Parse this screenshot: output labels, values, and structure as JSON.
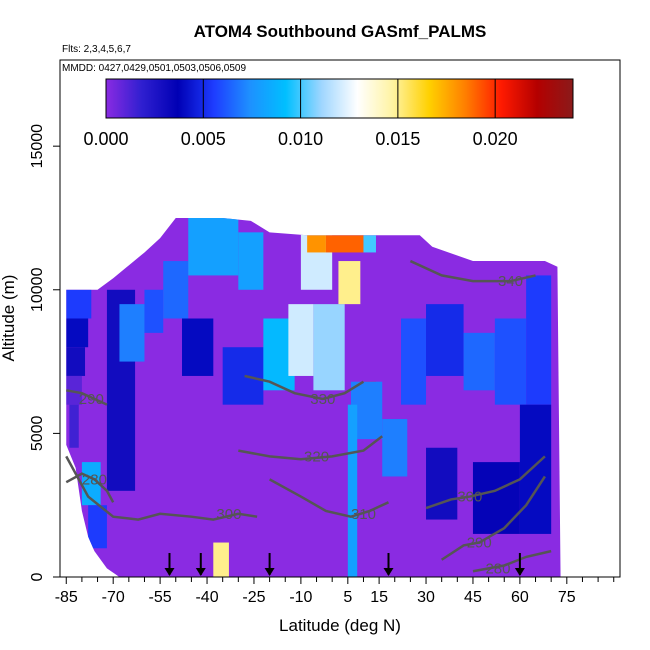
{
  "chart_data": {
    "type": "heatmap",
    "title": "ATOM4 Southbound GASmf_PALMS",
    "flights_note": "Flts: 2,3,4,5,6,7",
    "dates_note": "MMDD: 0427,0429,0501,0503,0506,0509",
    "xlabel": "Latitude (deg N)",
    "ylabel": "Altitude (m)",
    "xlim": [
      -87,
      92
    ],
    "ylim": [
      0,
      18000
    ],
    "x_tick_labels": [
      "-85",
      "-70",
      "-55",
      "-40",
      "-25",
      "-10",
      "5",
      "15",
      "30",
      "45",
      "60",
      "75"
    ],
    "x_tick_values": [
      -85,
      -70,
      -55,
      -40,
      -25,
      -10,
      5,
      15,
      30,
      45,
      60,
      75
    ],
    "y_tick_labels": [
      "0",
      "5000",
      "10000",
      "15000"
    ],
    "y_tick_values": [
      0,
      5000,
      10000,
      15000
    ],
    "colorbar": {
      "min": 0.0,
      "max": 0.024,
      "tick_values": [
        0.0,
        0.005,
        0.01,
        0.015,
        0.02
      ],
      "tick_labels": [
        "0.000",
        "0.005",
        "0.010",
        "0.015",
        "0.020"
      ],
      "colors": [
        "#8a2be2",
        "#2f1fd0",
        "#0000b4",
        "#1e3cff",
        "#1e90ff",
        "#00bfff",
        "#9fd6ff",
        "#ffffff",
        "#fff3a0",
        "#ffd000",
        "#ff7f00",
        "#ff1a00",
        "#b40000",
        "#8b1a1a"
      ]
    },
    "profile_arrows_lat": [
      -52,
      -42,
      -20,
      18,
      60
    ],
    "data_envelope": {
      "top_alt_m": [
        [
          -85,
          10000
        ],
        [
          -75,
          10000
        ],
        [
          -70,
          10400
        ],
        [
          -60,
          11300
        ],
        [
          -55,
          11800
        ],
        [
          -50,
          12500
        ],
        [
          -35,
          12500
        ],
        [
          -26,
          12400
        ],
        [
          -20,
          12000
        ],
        [
          -8,
          11900
        ],
        [
          0,
          11900
        ],
        [
          15,
          11900
        ],
        [
          28,
          11900
        ],
        [
          32,
          11500
        ],
        [
          45,
          11000
        ],
        [
          60,
          11000
        ],
        [
          68,
          11000
        ],
        [
          72,
          10800
        ]
      ],
      "bottom_alt_m": [
        [
          -85,
          4600
        ],
        [
          -82,
          3800
        ],
        [
          -80,
          2300
        ],
        [
          -78,
          1400
        ],
        [
          -76,
          900
        ],
        [
          -72,
          300
        ],
        [
          -68,
          0
        ],
        [
          73,
          0
        ]
      ]
    },
    "cells": [
      {
        "lat": [
          -85,
          -77
        ],
        "alt": [
          9000,
          10000
        ],
        "value": 0.0055
      },
      {
        "lat": [
          -85,
          -78
        ],
        "alt": [
          8000,
          9000
        ],
        "value": 0.004
      },
      {
        "lat": [
          -85,
          -79
        ],
        "alt": [
          7000,
          8000
        ],
        "value": 0.003
      },
      {
        "lat": [
          -85,
          -80
        ],
        "alt": [
          6000,
          7000
        ],
        "value": 0.001
      },
      {
        "lat": [
          -84,
          -81
        ],
        "alt": [
          4500,
          6000
        ],
        "value": 0.0015
      },
      {
        "lat": [
          -80,
          -74
        ],
        "alt": [
          2500,
          4000
        ],
        "value": 0.0085
      },
      {
        "lat": [
          -78,
          -72
        ],
        "alt": [
          1000,
          2500
        ],
        "value": 0.0055
      },
      {
        "lat": [
          -72,
          -63
        ],
        "alt": [
          3000,
          10000
        ],
        "value": 0.003
      },
      {
        "lat": [
          -68,
          -60
        ],
        "alt": [
          7500,
          9500
        ],
        "value": 0.007
      },
      {
        "lat": [
          -60,
          -54
        ],
        "alt": [
          8500,
          10000
        ],
        "value": 0.006
      },
      {
        "lat": [
          -54,
          -46
        ],
        "alt": [
          9000,
          11000
        ],
        "value": 0.0065
      },
      {
        "lat": [
          -48,
          -38
        ],
        "alt": [
          7000,
          9000
        ],
        "value": 0.004
      },
      {
        "lat": [
          -38,
          -33
        ],
        "alt": [
          0,
          1200
        ],
        "value": 0.015
      },
      {
        "lat": [
          -46,
          -30
        ],
        "alt": [
          10500,
          12500
        ],
        "value": 0.008
      },
      {
        "lat": [
          -30,
          -22
        ],
        "alt": [
          10000,
          12000
        ],
        "value": 0.008
      },
      {
        "lat": [
          -35,
          -22
        ],
        "alt": [
          6000,
          8000
        ],
        "value": 0.005
      },
      {
        "lat": [
          -22,
          -12
        ],
        "alt": [
          6500,
          9000
        ],
        "value": 0.009
      },
      {
        "lat": [
          -14,
          -6
        ],
        "alt": [
          7000,
          9500
        ],
        "value": 0.012
      },
      {
        "lat": [
          -6,
          4
        ],
        "alt": [
          6500,
          9500
        ],
        "value": 0.011
      },
      {
        "lat": [
          -10,
          0
        ],
        "alt": [
          10000,
          12000
        ],
        "value": 0.012
      },
      {
        "lat": [
          -8,
          -2
        ],
        "alt": [
          11300,
          11900
        ],
        "value": 0.018
      },
      {
        "lat": [
          -2,
          10
        ],
        "alt": [
          11300,
          11900
        ],
        "value": 0.019
      },
      {
        "lat": [
          10,
          14
        ],
        "alt": [
          11300,
          11900
        ],
        "value": 0.01
      },
      {
        "lat": [
          2,
          9
        ],
        "alt": [
          9500,
          11000
        ],
        "value": 0.015
      },
      {
        "lat": [
          10,
          14
        ],
        "alt": [
          6000,
          6800
        ],
        "value": 0.02
      },
      {
        "lat": [
          6,
          16
        ],
        "alt": [
          4800,
          6800
        ],
        "value": 0.007
      },
      {
        "lat": [
          16,
          24
        ],
        "alt": [
          3500,
          5500
        ],
        "value": 0.007
      },
      {
        "lat": [
          22,
          30
        ],
        "alt": [
          6000,
          9000
        ],
        "value": 0.006
      },
      {
        "lat": [
          30,
          42
        ],
        "alt": [
          7000,
          9500
        ],
        "value": 0.005
      },
      {
        "lat": [
          42,
          52
        ],
        "alt": [
          6500,
          8500
        ],
        "value": 0.0065
      },
      {
        "lat": [
          52,
          62
        ],
        "alt": [
          6000,
          9000
        ],
        "value": 0.006
      },
      {
        "lat": [
          62,
          70
        ],
        "alt": [
          6000,
          10500
        ],
        "value": 0.0055
      },
      {
        "lat": [
          5,
          8
        ],
        "alt": [
          0,
          6000
        ],
        "value": 0.008
      },
      {
        "lat": [
          30,
          40
        ],
        "alt": [
          2000,
          4500
        ],
        "value": 0.003
      },
      {
        "lat": [
          45,
          60
        ],
        "alt": [
          1500,
          4000
        ],
        "value": 0.0035
      },
      {
        "lat": [
          60,
          70
        ],
        "alt": [
          1500,
          6000
        ],
        "value": 0.004
      }
    ],
    "contours": [
      {
        "label": "280",
        "label_at": [
          -76,
          3400
        ],
        "points": [
          [
            -85,
            3300
          ],
          [
            -80,
            3600
          ],
          [
            -76,
            3400
          ],
          [
            -72,
            3000
          ],
          [
            -70,
            2600
          ]
        ]
      },
      {
        "label": "290",
        "label_at": [
          -77,
          6200
        ],
        "points": [
          [
            -85,
            6500
          ],
          [
            -80,
            6400
          ],
          [
            -76,
            6200
          ],
          [
            -72,
            6000
          ]
        ]
      },
      {
        "label": "300",
        "label_at": [
          -33,
          2200
        ],
        "points": [
          [
            -85,
            4200
          ],
          [
            -78,
            2800
          ],
          [
            -70,
            2100
          ],
          [
            -62,
            2000
          ],
          [
            -55,
            2200
          ],
          [
            -45,
            2100
          ],
          [
            -38,
            2000
          ],
          [
            -30,
            2200
          ],
          [
            -24,
            2100
          ]
        ]
      },
      {
        "label": "310",
        "label_at": [
          10,
          2200
        ],
        "points": [
          [
            -20,
            3400
          ],
          [
            -10,
            2800
          ],
          [
            -2,
            2300
          ],
          [
            6,
            2100
          ],
          [
            12,
            2300
          ],
          [
            18,
            2600
          ]
        ]
      },
      {
        "label": "320",
        "label_at": [
          -5,
          4200
        ],
        "points": [
          [
            -30,
            4400
          ],
          [
            -20,
            4200
          ],
          [
            -10,
            4100
          ],
          [
            0,
            4200
          ],
          [
            10,
            4400
          ],
          [
            16,
            4900
          ]
        ]
      },
      {
        "label": "330",
        "label_at": [
          -3,
          6200
        ],
        "points": [
          [
            -28,
            7000
          ],
          [
            -20,
            6800
          ],
          [
            -12,
            6400
          ],
          [
            -3,
            6200
          ],
          [
            4,
            6400
          ],
          [
            10,
            6800
          ]
        ]
      },
      {
        "label": "340",
        "label_at": [
          57,
          10300
        ],
        "points": [
          [
            25,
            11000
          ],
          [
            35,
            10500
          ],
          [
            45,
            10300
          ],
          [
            57,
            10300
          ],
          [
            65,
            10500
          ]
        ]
      },
      {
        "label": "290",
        "label_at": [
          47,
          1200
        ],
        "points": [
          [
            35,
            600
          ],
          [
            42,
            1100
          ],
          [
            47,
            1200
          ],
          [
            55,
            1700
          ],
          [
            62,
            2500
          ],
          [
            68,
            3500
          ]
        ]
      },
      {
        "label": "280",
        "label_at": [
          53,
          300
        ],
        "points": [
          [
            45,
            200
          ],
          [
            50,
            300
          ],
          [
            55,
            400
          ],
          [
            62,
            700
          ],
          [
            70,
            900
          ]
        ]
      },
      {
        "label": "300",
        "label_at": [
          44,
          2800
        ],
        "points": [
          [
            30,
            2400
          ],
          [
            38,
            2700
          ],
          [
            44,
            2800
          ],
          [
            52,
            3000
          ],
          [
            60,
            3400
          ],
          [
            68,
            4200
          ]
        ]
      }
    ]
  }
}
